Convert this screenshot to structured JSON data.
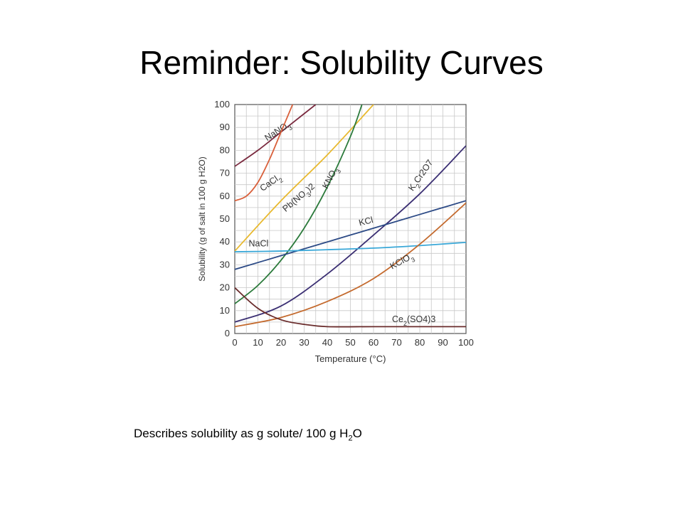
{
  "slide": {
    "title": "Reminder:  Solubility Curves",
    "caption_main": "Describes solubility as g solute/ 100 g H",
    "caption_sub": "2",
    "caption_end": "O"
  },
  "chart_data": {
    "type": "line",
    "title": "",
    "xlabel": "Temperature (°C)",
    "ylabel": "Solubility (g of salt in 100 g H2O)",
    "xlim": [
      0,
      100
    ],
    "ylim": [
      0,
      100
    ],
    "xticks": [
      0,
      10,
      20,
      30,
      40,
      50,
      60,
      70,
      80,
      90,
      100
    ],
    "yticks": [
      0,
      10,
      20,
      30,
      40,
      50,
      60,
      70,
      80,
      90,
      100
    ],
    "grid": true,
    "series": [
      {
        "name": "NaNO3",
        "label_main": "NaNO",
        "label_sub": "3",
        "label_end": "",
        "color": "#7a2a3f",
        "x": [
          0,
          10,
          20,
          30,
          35
        ],
        "y": [
          73,
          80,
          88,
          96,
          100
        ]
      },
      {
        "name": "CaCl2",
        "label_main": "CaCl",
        "label_sub": "2",
        "label_end": "",
        "color": "#d9603b",
        "x": [
          0,
          5,
          10,
          15,
          20,
          25
        ],
        "y": [
          58,
          60,
          66,
          76,
          88,
          100
        ]
      },
      {
        "name": "Pb(NO3)2",
        "label_main": "Pb(NO",
        "label_sub": "3",
        "label_end": ")2",
        "color": "#e8b92f",
        "x": [
          0,
          20,
          40,
          60
        ],
        "y": [
          36,
          58,
          78,
          100
        ]
      },
      {
        "name": "KNO3",
        "label_main": "KNO",
        "label_sub": "3",
        "label_end": "",
        "color": "#2b7a3b",
        "x": [
          0,
          10,
          20,
          30,
          40,
          50,
          55
        ],
        "y": [
          13,
          21,
          32,
          46,
          64,
          86,
          100
        ]
      },
      {
        "name": "K2Cr2O7",
        "label_main": "K",
        "label_sub": "2",
        "label_end": "Cr2O7",
        "color": "#3b2f73",
        "x": [
          0,
          20,
          40,
          60,
          80,
          100
        ],
        "y": [
          5,
          12,
          26,
          43,
          61,
          82
        ]
      },
      {
        "name": "KCl",
        "label_main": "KCl",
        "label_sub": "",
        "label_end": "",
        "color": "#2c4a86",
        "x": [
          0,
          20,
          40,
          60,
          80,
          100
        ],
        "y": [
          28,
          34,
          40,
          46,
          52,
          58
        ]
      },
      {
        "name": "NaCl",
        "label_main": "NaCl",
        "label_sub": "",
        "label_end": "",
        "color": "#3aa8d8",
        "x": [
          0,
          20,
          40,
          60,
          80,
          100
        ],
        "y": [
          35.7,
          36,
          36.6,
          37.3,
          38.4,
          39.8
        ]
      },
      {
        "name": "KClO3",
        "label_main": "KClO",
        "label_sub": "3",
        "label_end": "",
        "color": "#c46a2e",
        "x": [
          0,
          20,
          40,
          60,
          80,
          100
        ],
        "y": [
          3,
          7,
          14,
          24,
          39,
          57
        ]
      },
      {
        "name": "Ce2(SO4)3",
        "label_main": "Ce",
        "label_sub": "2",
        "label_end": "(SO4)3",
        "color": "#6a2c2c",
        "x": [
          0,
          10,
          20,
          30,
          40,
          60,
          80,
          100
        ],
        "y": [
          20,
          11,
          6,
          4,
          3,
          3,
          3,
          3
        ]
      }
    ]
  }
}
